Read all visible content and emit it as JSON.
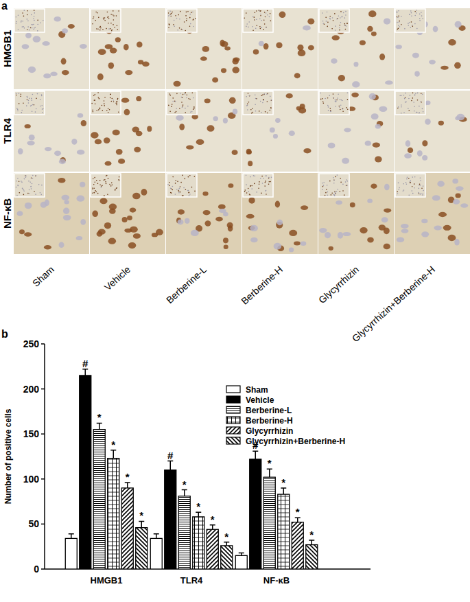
{
  "panels": {
    "a": {
      "label": "a",
      "rows": [
        "HMGB1",
        "TLR4",
        "NF-κB"
      ],
      "columns": [
        "Sham",
        "Vehicle",
        "Berberine-L",
        "Berberine-H",
        "Glycyrrhizin",
        "Glycyrrhizin+Berberine-H"
      ]
    },
    "b": {
      "label": "b"
    }
  },
  "chart_data": {
    "type": "bar",
    "y_label": "Number of positive cells",
    "categories": [
      "HMGB1",
      "TLR4",
      "NF-κB"
    ],
    "ylim": [
      0,
      250
    ],
    "yticks": [
      0,
      50,
      100,
      150,
      200,
      250
    ],
    "grid": false,
    "legend": "top-right",
    "series": [
      {
        "name": "Sham",
        "color": "#ffffff",
        "values": [
          34,
          34,
          15
        ],
        "errors": [
          5,
          5,
          3
        ]
      },
      {
        "name": "Vehicle",
        "color": "#000000",
        "values": [
          215,
          110,
          122
        ],
        "errors": [
          7,
          10,
          9
        ],
        "significance": [
          "#",
          "#",
          "#"
        ]
      },
      {
        "name": "Berberine-L",
        "color": "#ffffff",
        "values": [
          155,
          81,
          102
        ],
        "errors": [
          7,
          7,
          9
        ],
        "significance": [
          "*",
          "*",
          "*"
        ]
      },
      {
        "name": "Berberine-H",
        "color": "#ffffff",
        "values": [
          123,
          58,
          83
        ],
        "errors": [
          9,
          5,
          7
        ],
        "significance": [
          "*",
          "*",
          "*"
        ]
      },
      {
        "name": "Glycyrrhizin",
        "color": "#ffffff",
        "values": [
          90,
          44,
          52
        ],
        "errors": [
          6,
          5,
          5
        ],
        "significance": [
          "*",
          "*",
          "*"
        ]
      },
      {
        "name": "Glycyrrhizin+Berberine-H",
        "color": "#ffffff",
        "values": [
          46,
          26,
          27
        ],
        "errors": [
          7,
          4,
          5
        ],
        "significance": [
          "*",
          "*",
          "*"
        ]
      }
    ]
  }
}
